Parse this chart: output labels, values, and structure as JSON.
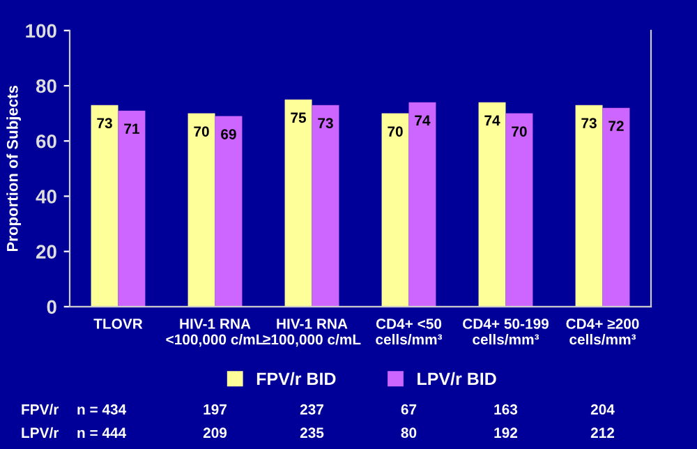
{
  "chart_data": {
    "type": "bar",
    "ylabel": "Proportion of Subjects",
    "categories": [
      "TLOVR",
      "HIV-1 RNA\n<100,000 c/mL",
      "HIV-1 RNA\n≥100,000 c/mL",
      "CD4+ <50\ncells/mm³",
      "CD4+ 50-199\ncells/mm³",
      "CD4+ ≥200\ncells/mm³"
    ],
    "series": [
      {
        "name": "FPV/r BID",
        "color": "#ffff99",
        "values": [
          73,
          70,
          75,
          70,
          74,
          73
        ]
      },
      {
        "name": "LPV/r BID",
        "color": "#cc66ff",
        "values": [
          71,
          69,
          73,
          74,
          70,
          72
        ]
      }
    ],
    "ylim": [
      0,
      100
    ],
    "yticks": [
      0,
      20,
      40,
      60,
      80,
      100
    ],
    "data_labels": true,
    "legend": "bottom",
    "grid": false,
    "annotations": [
      "FPV/r",
      "n = 434",
      "197",
      "237",
      "67",
      "163",
      "204",
      "LPV/r",
      "n = 444",
      "209",
      "235",
      "80",
      "192",
      "212"
    ]
  }
}
